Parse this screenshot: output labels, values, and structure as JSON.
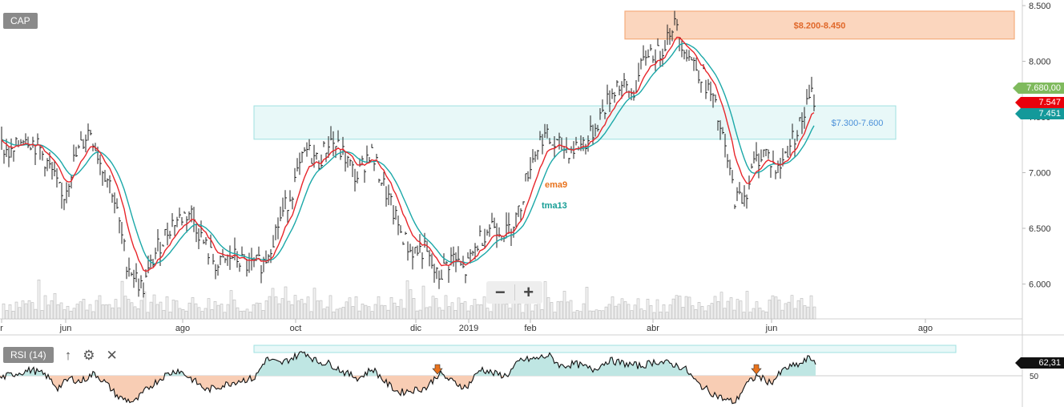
{
  "symbol": "CAP",
  "rsi_label": "RSI (14)",
  "icons": {
    "up": "arrow-up-icon",
    "settings": "gear-icon",
    "close": "close-icon"
  },
  "zoom": {
    "minus": "−",
    "plus": "+"
  },
  "colors": {
    "ema": "#e8262b",
    "tma": "#1ba8a8",
    "zone_top": "#f4a46e",
    "zone_mid": "#9fe0e0",
    "rsi_up": "#bfe6e3",
    "rsi_down": "#f8cdb4",
    "last_price": "#7fba5d"
  },
  "chart_data": {
    "type": "line",
    "x_labels": [
      "r",
      "jun",
      "ago",
      "oct",
      "dic",
      "2019",
      "feb",
      "abr",
      "jun",
      "ago"
    ],
    "y_ticks": [
      "8.500",
      "8.000",
      "7.500",
      "7.000",
      "6.500",
      "6.000"
    ],
    "ylim": [
      5.8,
      8.5
    ],
    "series_labels": {
      "ema": "ema9",
      "tma": "tma13"
    },
    "zones": [
      {
        "label": "$8.200-8.450",
        "low": 8.2,
        "high": 8.45
      },
      {
        "label": "$7.300-7.600",
        "low": 7.3,
        "high": 7.6
      }
    ],
    "price_tags": [
      {
        "label": "7.680,00",
        "value": 7.68
      },
      {
        "label": "7.547",
        "value": 7.547
      },
      {
        "label": "7.451",
        "value": 7.451
      }
    ],
    "price_keypoints": [
      [
        0,
        7.25
      ],
      [
        15,
        7.15
      ],
      [
        30,
        7.35
      ],
      [
        50,
        7.2
      ],
      [
        65,
        7.0
      ],
      [
        78,
        6.75
      ],
      [
        92,
        7.1
      ],
      [
        112,
        7.4
      ],
      [
        125,
        7.1
      ],
      [
        140,
        6.85
      ],
      [
        158,
        6.2
      ],
      [
        178,
        5.95
      ],
      [
        195,
        6.3
      ],
      [
        215,
        6.55
      ],
      [
        238,
        6.65
      ],
      [
        255,
        6.35
      ],
      [
        272,
        6.15
      ],
      [
        290,
        6.25
      ],
      [
        312,
        6.15
      ],
      [
        330,
        6.2
      ],
      [
        345,
        6.5
      ],
      [
        365,
        6.85
      ],
      [
        382,
        7.2
      ],
      [
        398,
        7.1
      ],
      [
        412,
        7.3
      ],
      [
        430,
        7.15
      ],
      [
        445,
        6.95
      ],
      [
        462,
        7.2
      ],
      [
        478,
        6.9
      ],
      [
        498,
        6.5
      ],
      [
        512,
        6.3
      ],
      [
        530,
        6.3
      ],
      [
        546,
        6.05
      ],
      [
        565,
        6.25
      ],
      [
        580,
        6.1
      ],
      [
        598,
        6.4
      ],
      [
        615,
        6.55
      ],
      [
        632,
        6.45
      ],
      [
        648,
        6.65
      ],
      [
        660,
        7.05
      ],
      [
        678,
        7.35
      ],
      [
        690,
        7.25
      ],
      [
        712,
        7.2
      ],
      [
        735,
        7.3
      ],
      [
        752,
        7.55
      ],
      [
        770,
        7.8
      ],
      [
        790,
        7.7
      ],
      [
        808,
        8.1
      ],
      [
        822,
        8.05
      ],
      [
        840,
        8.35
      ],
      [
        860,
        8.05
      ],
      [
        878,
        7.85
      ],
      [
        892,
        7.6
      ],
      [
        905,
        7.2
      ],
      [
        918,
        6.75
      ],
      [
        930,
        6.8
      ],
      [
        942,
        7.1
      ],
      [
        955,
        7.2
      ],
      [
        970,
        7.0
      ],
      [
        985,
        7.25
      ],
      [
        1000,
        7.45
      ],
      [
        1012,
        7.7
      ],
      [
        1018,
        7.65
      ]
    ],
    "rsi": {
      "ylabel": "50",
      "last_label": "62,31",
      "keypoints": [
        [
          0,
          48
        ],
        [
          20,
          52
        ],
        [
          40,
          55
        ],
        [
          58,
          50
        ],
        [
          72,
          40
        ],
        [
          88,
          48
        ],
        [
          100,
          45
        ],
        [
          118,
          52
        ],
        [
          132,
          44
        ],
        [
          148,
          32
        ],
        [
          168,
          28
        ],
        [
          185,
          40
        ],
        [
          205,
          50
        ],
        [
          222,
          55
        ],
        [
          240,
          47
        ],
        [
          258,
          38
        ],
        [
          278,
          42
        ],
        [
          298,
          46
        ],
        [
          318,
          48
        ],
        [
          332,
          64
        ],
        [
          350,
          60
        ],
        [
          368,
          66
        ],
        [
          380,
          70
        ],
        [
          395,
          62
        ],
        [
          412,
          60
        ],
        [
          432,
          52
        ],
        [
          448,
          48
        ],
        [
          465,
          56
        ],
        [
          482,
          44
        ],
        [
          498,
          36
        ],
        [
          515,
          38
        ],
        [
          532,
          40
        ],
        [
          548,
          52
        ],
        [
          565,
          45
        ],
        [
          582,
          40
        ],
        [
          600,
          56
        ],
        [
          615,
          52
        ],
        [
          632,
          50
        ],
        [
          650,
          63
        ],
        [
          668,
          64
        ],
        [
          685,
          67
        ],
        [
          700,
          58
        ],
        [
          718,
          60
        ],
        [
          740,
          55
        ],
        [
          760,
          63
        ],
        [
          780,
          60
        ],
        [
          800,
          58
        ],
        [
          818,
          62
        ],
        [
          838,
          60
        ],
        [
          855,
          56
        ],
        [
          870,
          44
        ],
        [
          888,
          36
        ],
        [
          905,
          30
        ],
        [
          918,
          28
        ],
        [
          930,
          42
        ],
        [
          945,
          50
        ],
        [
          962,
          44
        ],
        [
          980,
          56
        ],
        [
          1000,
          60
        ],
        [
          1010,
          65
        ],
        [
          1018,
          62
        ]
      ],
      "arrows_at_x": [
        546,
        944
      ]
    }
  }
}
